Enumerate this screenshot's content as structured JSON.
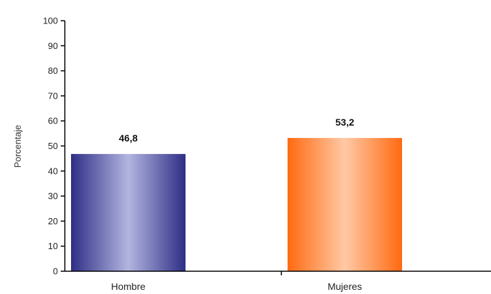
{
  "chart_data": {
    "type": "bar",
    "title": "",
    "xlabel": "",
    "ylabel": "Porcentaje",
    "ylim": [
      0,
      100
    ],
    "yticks": [
      0,
      10,
      20,
      30,
      40,
      50,
      60,
      70,
      80,
      90,
      100
    ],
    "grid": false,
    "legend": "none",
    "categories": [
      "Hombre",
      "Mujeres"
    ],
    "values": [
      46.8,
      53.2
    ],
    "data_labels": [
      "46,8",
      "53,2"
    ],
    "colors": [
      "#3a3a96",
      "#ff6a1a"
    ]
  }
}
